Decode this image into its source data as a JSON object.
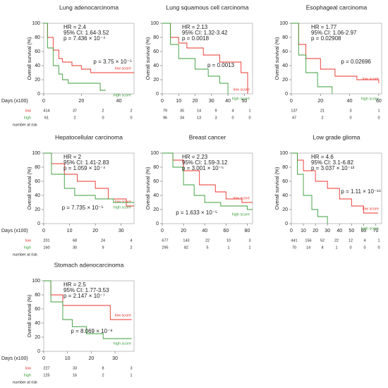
{
  "chart_data": [
    {
      "type": "line",
      "step": true,
      "title": "Lung adenocarcinoma",
      "xlabel": "Days (x100)",
      "ylabel": "Overall survival (%)",
      "annotations": [
        "HR = 2.4",
        "95% CI: 1.64-3.52",
        "p = 7.436 × 10⁻⁴",
        "p = 3.75 × 10⁻⁵"
      ],
      "xlim": [
        0,
        48
      ],
      "xticks": [
        0,
        20,
        40
      ],
      "ylim": [
        0,
        100
      ],
      "yticks": [
        0,
        20,
        40,
        60,
        80,
        100
      ],
      "series": [
        {
          "name": "low score",
          "color": "#e8332b",
          "x": [
            0,
            2,
            5,
            8,
            10,
            15,
            20,
            25,
            48
          ],
          "values": [
            100,
            80,
            62,
            50,
            45,
            40,
            35,
            30,
            30
          ]
        },
        {
          "name": "high score",
          "color": "#3a9e3a",
          "x": [
            0,
            2,
            5,
            8,
            10,
            13,
            30,
            33
          ],
          "values": [
            100,
            65,
            40,
            28,
            20,
            15,
            5,
            5
          ]
        }
      ],
      "risk_table": {
        "caption": "number at risk",
        "rows": [
          {
            "name": "low",
            "values": [
              414,
              37,
              2,
              2
            ]
          },
          {
            "name": "high",
            "values": [
              61,
              2,
              0,
              0
            ]
          }
        ]
      }
    },
    {
      "type": "line",
      "step": true,
      "title": "Lung squamous cell carcinoma",
      "ylabel": "Overall survival (%)",
      "annotations": [
        "HR = 2.13",
        "95% CI: 1.32-3.42",
        "p = 0.0018",
        "p = 0.0013"
      ],
      "xlim": [
        0,
        55
      ],
      "xticks": [
        0,
        10,
        20,
        30,
        40,
        50
      ],
      "ylim": [
        0,
        100
      ],
      "yticks": [
        0,
        20,
        40,
        60,
        80,
        100
      ],
      "series": [
        {
          "name": "low score",
          "color": "#e8332b",
          "x": [
            0,
            5,
            10,
            15,
            25,
            35,
            48,
            52
          ],
          "values": [
            100,
            80,
            72,
            65,
            55,
            45,
            30,
            0
          ]
        },
        {
          "name": "high score",
          "color": "#3a9e3a",
          "x": [
            0,
            5,
            10,
            20,
            28,
            35,
            40
          ],
          "values": [
            100,
            70,
            50,
            35,
            25,
            15,
            0
          ]
        }
      ],
      "risk_table": {
        "rows": [
          {
            "values": [
              79,
              35,
              14,
              9,
              4,
              1
            ]
          },
          {
            "values": [
              96,
              34,
              13,
              3,
              0,
              0
            ]
          }
        ]
      }
    },
    {
      "type": "line",
      "step": true,
      "title": "Esophageal carcinoma",
      "ylabel": "Overall survival (%)",
      "annotations": [
        "HR = 1.77",
        "95% CI: 1.06-2.97",
        "p = 0.02908",
        "p = 0.02696"
      ],
      "xlim": [
        0,
        62
      ],
      "xticks": [
        0,
        20,
        40,
        60
      ],
      "ylim": [
        0,
        100
      ],
      "yticks": [
        0,
        20,
        40,
        60,
        80,
        100
      ],
      "series": [
        {
          "name": "low score",
          "color": "#e8332b",
          "x": [
            0,
            5,
            10,
            20,
            30,
            45,
            60
          ],
          "values": [
            100,
            70,
            50,
            35,
            25,
            20,
            15
          ]
        },
        {
          "name": "high score",
          "color": "#3a9e3a",
          "x": [
            0,
            5,
            10,
            18,
            28
          ],
          "values": [
            100,
            55,
            30,
            10,
            0
          ]
        }
      ],
      "risk_table": {
        "rows": [
          {
            "values": [
              137,
              21,
              3,
              1
            ]
          },
          {
            "values": [
              47,
              2,
              0,
              0
            ]
          }
        ]
      }
    },
    {
      "type": "line",
      "step": true,
      "title": "Hepatocellular carcinoma",
      "xlabel": "Days (x100)",
      "ylabel": "Overall survival (%)",
      "annotations": [
        "HR = 2",
        "95% CI: 1.41-2.83",
        "p = 1.059 × 10⁻⁴",
        "p = 7.735 × 10⁻⁵"
      ],
      "xlim": [
        0,
        35
      ],
      "xticks": [
        0,
        10,
        20,
        30
      ],
      "ylim": [
        0,
        100
      ],
      "yticks": [
        0,
        20,
        40,
        60,
        80,
        100
      ],
      "series": [
        {
          "name": "low score",
          "color": "#e8332b",
          "x": [
            0,
            3,
            8,
            13,
            20,
            25,
            32,
            35
          ],
          "values": [
            100,
            85,
            70,
            60,
            50,
            35,
            25,
            25
          ]
        },
        {
          "name": "high score",
          "color": "#3a9e3a",
          "x": [
            0,
            3,
            8,
            12,
            20,
            27,
            35
          ],
          "values": [
            100,
            70,
            50,
            40,
            35,
            30,
            30
          ]
        }
      ],
      "risk_table": {
        "caption": "number at risk",
        "rows": [
          {
            "name": "low",
            "values": [
              201,
              68,
              24,
              4
            ]
          },
          {
            "name": "high",
            "values": [
              160,
              30,
              9,
              2
            ]
          }
        ]
      }
    },
    {
      "type": "line",
      "step": true,
      "title": "Breast cancer",
      "ylabel": "Overall survival (%)",
      "annotations": [
        "HR = 2.23",
        "95% CI: 1.59-3.12",
        "p = 3.001 × 10⁻⁵",
        "p = 1.633 × 10⁻⁵"
      ],
      "xlim": [
        0,
        85
      ],
      "xticks": [
        0,
        20,
        40,
        60,
        80
      ],
      "ylim": [
        0,
        100
      ],
      "yticks": [
        0,
        20,
        40,
        60,
        80,
        100
      ],
      "series": [
        {
          "name": "low score",
          "color": "#e8332b",
          "x": [
            0,
            10,
            20,
            35,
            50,
            60,
            75,
            85
          ],
          "values": [
            100,
            90,
            75,
            55,
            45,
            35,
            30,
            30
          ]
        },
        {
          "name": "high score",
          "color": "#3a9e3a",
          "x": [
            0,
            10,
            20,
            30,
            40,
            55,
            80,
            85
          ],
          "values": [
            100,
            80,
            55,
            40,
            30,
            25,
            20,
            20
          ]
        }
      ],
      "risk_table": {
        "rows": [
          {
            "values": [
              677,
              143,
              22,
              10,
              3
            ]
          },
          {
            "values": [
              295,
              82,
              5,
              1,
              1
            ]
          }
        ]
      }
    },
    {
      "type": "line",
      "step": true,
      "title": "Low grade glioma",
      "ylabel": "Overall survival (%)",
      "annotations": [
        "HR = 4.6",
        "95% CI: 3.1-6.82",
        "p = 3.037 × 10⁻¹³",
        "p = 1.11 × 10⁻¹⁶"
      ],
      "xlim": [
        0,
        75
      ],
      "xticks": [
        0,
        10,
        20,
        30,
        40,
        50,
        60,
        70
      ],
      "ylim": [
        0,
        100
      ],
      "yticks": [
        0,
        20,
        40,
        60,
        80,
        100
      ],
      "series": [
        {
          "name": "low score",
          "color": "#e8332b",
          "x": [
            0,
            5,
            10,
            20,
            30,
            40,
            50,
            60,
            72
          ],
          "values": [
            100,
            90,
            75,
            60,
            50,
            35,
            25,
            15,
            15
          ]
        },
        {
          "name": "high score",
          "color": "#3a9e3a",
          "x": [
            0,
            5,
            10,
            17,
            22,
            30
          ],
          "values": [
            100,
            70,
            40,
            20,
            10,
            0
          ]
        }
      ],
      "risk_table": {
        "rows": [
          {
            "values": [
              441,
              156,
              52,
              22,
              12,
              4,
              1
            ]
          },
          {
            "values": [
              70,
              14,
              4,
              1,
              0,
              0,
              0
            ]
          }
        ]
      }
    },
    {
      "type": "line",
      "step": true,
      "title": "Stomach adenocarcinoma",
      "xlabel": "Days (x100)",
      "ylabel": "Overall survival (%)",
      "annotations": [
        "HR = 2.5",
        "95% CI: 1.77-3.53",
        "p = 2.147 × 10⁻⁷",
        "p = 8.069 × 10⁻⁸"
      ],
      "xlim": [
        0,
        38
      ],
      "xticks": [
        0,
        10,
        20,
        30
      ],
      "ylim": [
        0,
        100
      ],
      "yticks": [
        0,
        20,
        40,
        60,
        80,
        100
      ],
      "series": [
        {
          "name": "low score",
          "color": "#e8332b",
          "x": [
            0,
            3,
            8,
            25,
            28,
            37
          ],
          "values": [
            100,
            80,
            65,
            65,
            45,
            45
          ]
        },
        {
          "name": "high score",
          "color": "#3a9e3a",
          "x": [
            0,
            3,
            8,
            12,
            18,
            25,
            37
          ],
          "values": [
            100,
            70,
            45,
            35,
            25,
            18,
            18
          ]
        }
      ],
      "risk_table": {
        "caption": "number at risk",
        "rows": [
          {
            "name": "low",
            "values": [
              227,
              33,
              8,
              3
            ]
          },
          {
            "name": "high",
            "values": [
              125,
              16,
              2,
              1
            ]
          }
        ]
      }
    }
  ]
}
